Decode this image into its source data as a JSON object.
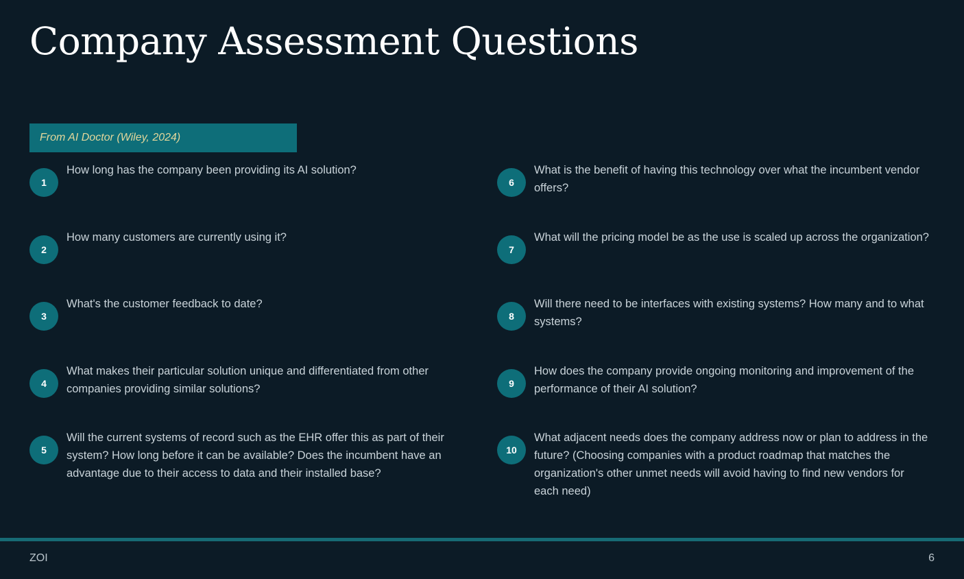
{
  "title": "Company Assessment Questions",
  "source": "From AI Doctor (Wiley, 2024)",
  "questions": [
    {
      "number": "1",
      "text": "How long has the company been providing its AI solution?"
    },
    {
      "number": "2",
      "text": "How many customers are currently using it?"
    },
    {
      "number": "3",
      "text": "What's the customer feedback to date?"
    },
    {
      "number": "4",
      "text": "What makes their particular solution unique and differentiated from other companies providing similar solutions?"
    },
    {
      "number": "5",
      "text": "Will the current systems of record such as the EHR offer this as part of their system? How long before it can be available? Does the incumbent have an advantage due to their access to data and their installed base?"
    },
    {
      "number": "6",
      "text": "What is the benefit of having this technology over what the incumbent vendor offers?"
    },
    {
      "number": "7",
      "text": "What will the pricing model be as the use is scaled up across the organization?"
    },
    {
      "number": "8",
      "text": "Will there need to be interfaces with existing systems? How many and to what systems?"
    },
    {
      "number": "9",
      "text": "How does the company provide ongoing monitoring and improvement of the performance of their AI solution?"
    },
    {
      "number": "10",
      "text": "What adjacent needs does the company address now or plan to address in the future? (Choosing companies with a product roadmap that matches the organization's other unmet needs will avoid having to find new vendors for each need)"
    }
  ],
  "footer": {
    "left": "ZOI",
    "page_number": "6"
  },
  "colors": {
    "background": "#0c1b26",
    "accent": "#0e6e79",
    "source_text": "#e3d79b"
  }
}
